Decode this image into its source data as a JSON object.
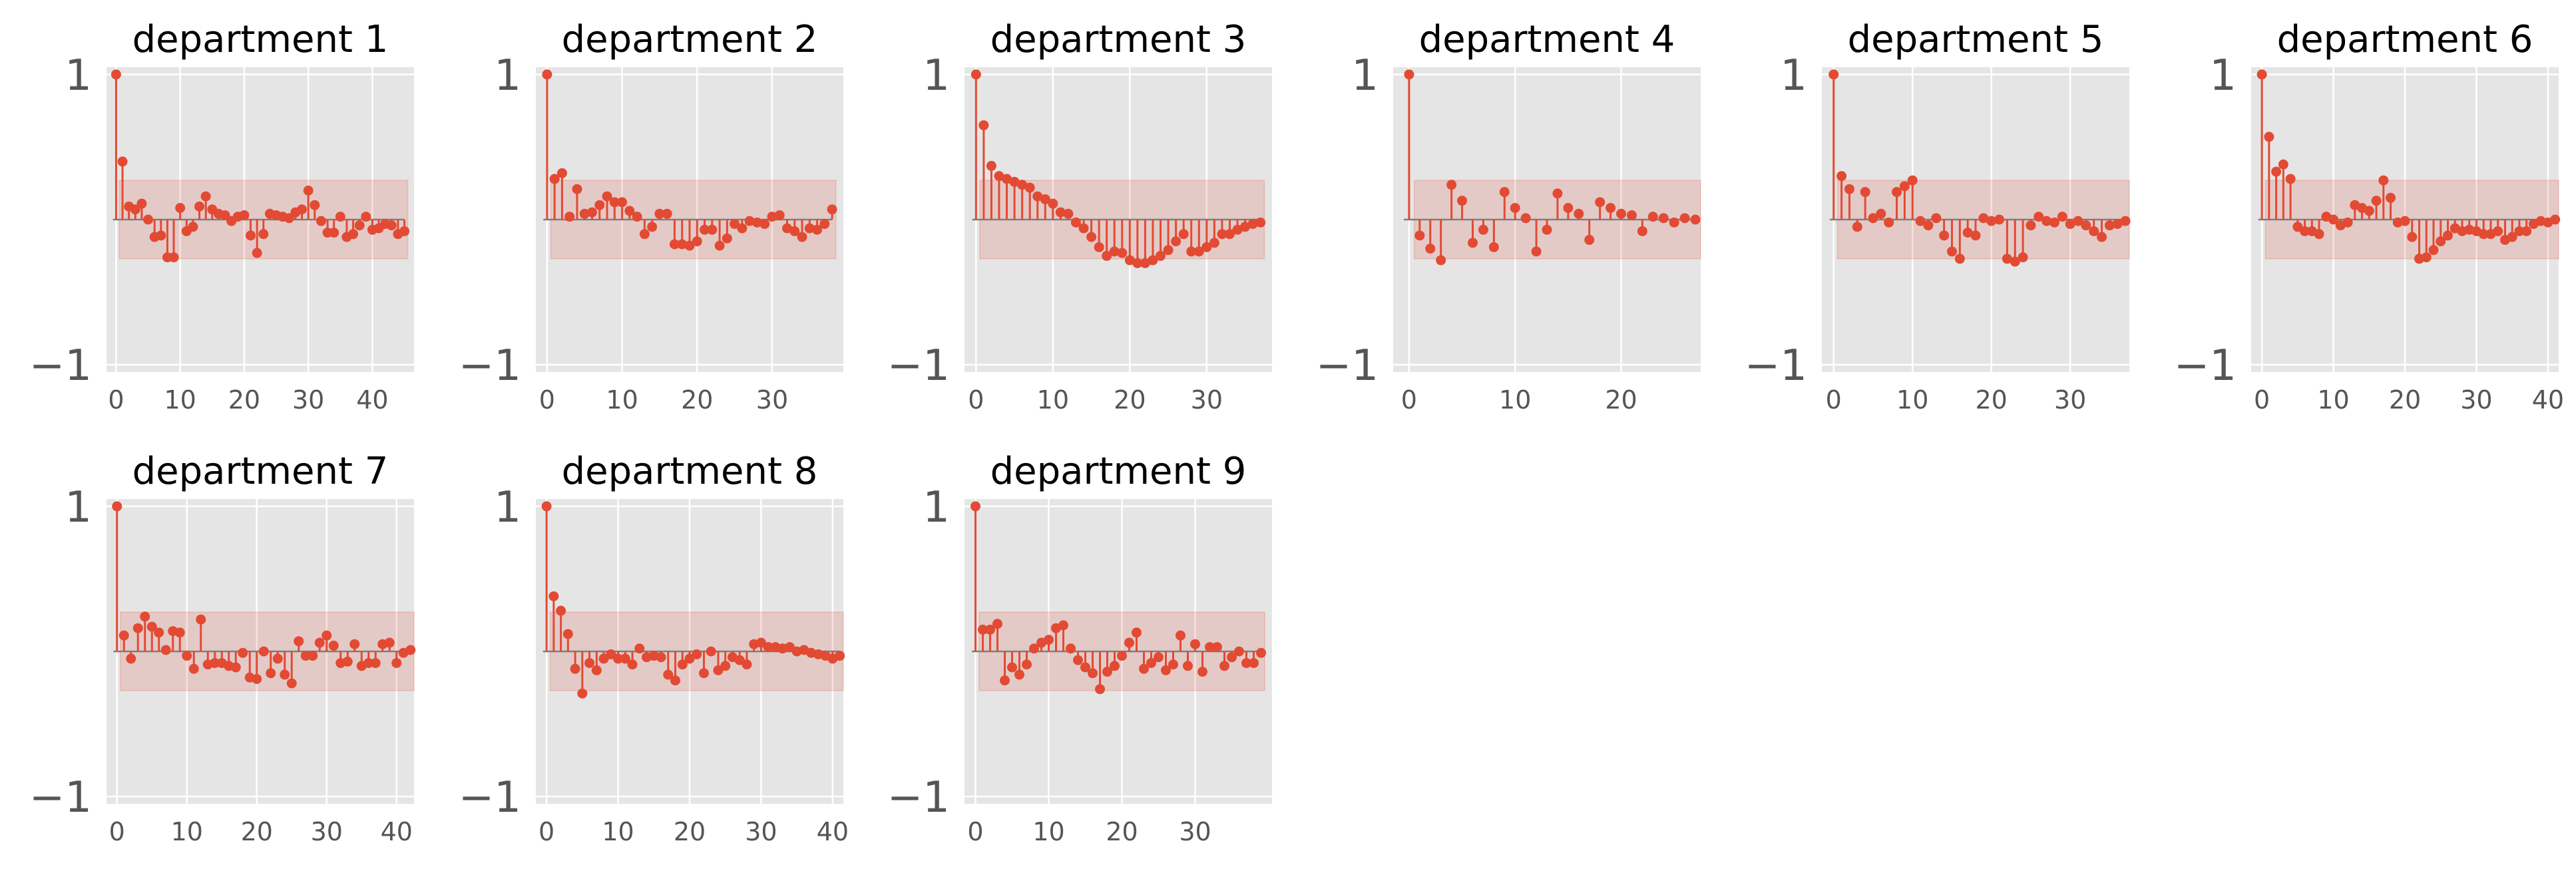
{
  "colors": {
    "stem": "#E24A33",
    "band": "#E24A33",
    "panel_bg": "#E5E5E5",
    "grid": "#FFFFFF",
    "tick_text": "#555555",
    "title_text": "#000000"
  },
  "chart_data": [
    {
      "type": "stem",
      "title": "department 1",
      "xlim": [
        -1.5,
        46.5
      ],
      "ylim": [
        -1.05,
        1.05
      ],
      "xticks": [
        0,
        10,
        20,
        30,
        40
      ],
      "yticks": [
        1,
        -1
      ],
      "xtick_labels": [
        "0",
        "10",
        "20",
        "30",
        "40"
      ],
      "ytick_labels": [
        "1",
        "−1"
      ],
      "confidence_band": 0.27,
      "lags": [
        0,
        1,
        2,
        3,
        4,
        5,
        6,
        7,
        8,
        9,
        10,
        11,
        12,
        13,
        14,
        15,
        16,
        17,
        18,
        19,
        20,
        21,
        22,
        23,
        24,
        25,
        26,
        27,
        28,
        29,
        30,
        31,
        32,
        33,
        34,
        35,
        36,
        37,
        38,
        39,
        40,
        41,
        42,
        43,
        44,
        45
      ],
      "values": [
        1.0,
        0.4,
        0.09,
        0.07,
        0.11,
        0.0,
        -0.12,
        -0.11,
        -0.26,
        -0.26,
        0.08,
        -0.08,
        -0.05,
        0.09,
        0.16,
        0.07,
        0.04,
        0.03,
        -0.01,
        0.02,
        0.03,
        -0.11,
        -0.23,
        -0.1,
        0.04,
        0.03,
        0.02,
        0.01,
        0.05,
        0.07,
        0.2,
        0.1,
        -0.01,
        -0.09,
        -0.09,
        0.02,
        -0.12,
        -0.1,
        -0.04,
        0.02,
        -0.07,
        -0.06,
        -0.03,
        -0.04,
        -0.1,
        -0.08
      ]
    },
    {
      "type": "stem",
      "title": "department 2",
      "xlim": [
        -1.5,
        39.5
      ],
      "ylim": [
        -1.05,
        1.05
      ],
      "xticks": [
        0,
        10,
        20,
        30
      ],
      "yticks": [
        1,
        -1
      ],
      "xtick_labels": [
        "0",
        "10",
        "20",
        "30"
      ],
      "ytick_labels": [
        "1",
        "−1"
      ],
      "confidence_band": 0.27,
      "lags": [
        0,
        1,
        2,
        3,
        4,
        5,
        6,
        7,
        8,
        9,
        10,
        11,
        12,
        13,
        14,
        15,
        16,
        17,
        18,
        19,
        20,
        21,
        22,
        23,
        24,
        25,
        26,
        27,
        28,
        29,
        30,
        31,
        32,
        33,
        34,
        35,
        36,
        37,
        38
      ],
      "values": [
        1.0,
        0.28,
        0.32,
        0.02,
        0.21,
        0.04,
        0.05,
        0.1,
        0.16,
        0.12,
        0.12,
        0.06,
        0.02,
        -0.1,
        -0.05,
        0.04,
        0.04,
        -0.17,
        -0.17,
        -0.18,
        -0.15,
        -0.07,
        -0.07,
        -0.18,
        -0.13,
        -0.03,
        -0.06,
        -0.01,
        -0.02,
        -0.03,
        0.02,
        0.03,
        -0.06,
        -0.08,
        -0.12,
        -0.06,
        -0.07,
        -0.03,
        0.07
      ]
    },
    {
      "type": "stem",
      "title": "department 3",
      "xlim": [
        -1.5,
        38.5
      ],
      "ylim": [
        -1.05,
        1.05
      ],
      "xticks": [
        0,
        10,
        20,
        30
      ],
      "yticks": [
        1,
        -1
      ],
      "xtick_labels": [
        "0",
        "10",
        "20",
        "30"
      ],
      "ytick_labels": [
        "1",
        "−1"
      ],
      "confidence_band": 0.27,
      "lags": [
        0,
        1,
        2,
        3,
        4,
        5,
        6,
        7,
        8,
        9,
        10,
        11,
        12,
        13,
        14,
        15,
        16,
        17,
        18,
        19,
        20,
        21,
        22,
        23,
        24,
        25,
        26,
        27,
        28,
        29,
        30,
        31,
        32,
        33,
        34,
        35,
        36,
        37
      ],
      "values": [
        1.0,
        0.65,
        0.37,
        0.3,
        0.28,
        0.26,
        0.24,
        0.22,
        0.16,
        0.14,
        0.11,
        0.05,
        0.04,
        -0.02,
        -0.06,
        -0.12,
        -0.19,
        -0.25,
        -0.22,
        -0.23,
        -0.28,
        -0.3,
        -0.3,
        -0.28,
        -0.25,
        -0.21,
        -0.15,
        -0.1,
        -0.22,
        -0.22,
        -0.19,
        -0.16,
        -0.1,
        -0.1,
        -0.07,
        -0.05,
        -0.03,
        -0.02
      ]
    },
    {
      "type": "stem",
      "title": "department 4",
      "xlim": [
        -1.5,
        27.5
      ],
      "ylim": [
        -1.05,
        1.05
      ],
      "xticks": [
        0,
        10,
        20
      ],
      "yticks": [
        1,
        -1
      ],
      "xtick_labels": [
        "0",
        "10",
        "20"
      ],
      "ytick_labels": [
        "1",
        "−1"
      ],
      "confidence_band": 0.27,
      "lags": [
        0,
        1,
        2,
        3,
        4,
        5,
        6,
        7,
        8,
        9,
        10,
        11,
        12,
        13,
        14,
        15,
        16,
        17,
        18,
        19,
        20,
        21,
        22,
        23,
        24,
        25,
        26,
        27
      ],
      "values": [
        1.0,
        -0.11,
        -0.2,
        -0.28,
        0.24,
        0.13,
        -0.16,
        -0.07,
        -0.19,
        0.19,
        0.08,
        0.01,
        -0.22,
        -0.07,
        0.18,
        0.08,
        0.04,
        -0.14,
        0.12,
        0.08,
        0.04,
        0.03,
        -0.08,
        0.02,
        0.01,
        -0.02,
        0.01,
        0.0
      ]
    },
    {
      "type": "stem",
      "title": "department 5",
      "xlim": [
        -1.5,
        37.5
      ],
      "ylim": [
        -1.05,
        1.05
      ],
      "xticks": [
        0,
        10,
        20,
        30
      ],
      "yticks": [
        1,
        -1
      ],
      "xtick_labels": [
        "0",
        "10",
        "20",
        "30"
      ],
      "ytick_labels": [
        "1",
        "−1"
      ],
      "confidence_band": 0.27,
      "lags": [
        0,
        1,
        2,
        3,
        4,
        5,
        6,
        7,
        8,
        9,
        10,
        11,
        12,
        13,
        14,
        15,
        16,
        17,
        18,
        19,
        20,
        21,
        22,
        23,
        24,
        25,
        26,
        27,
        28,
        29,
        30,
        31,
        32,
        33,
        34,
        35,
        36,
        37
      ],
      "values": [
        1.0,
        0.3,
        0.21,
        -0.05,
        0.19,
        0.01,
        0.04,
        -0.02,
        0.19,
        0.23,
        0.27,
        -0.01,
        -0.04,
        0.01,
        -0.11,
        -0.22,
        -0.27,
        -0.09,
        -0.11,
        0.01,
        -0.01,
        0.0,
        -0.27,
        -0.29,
        -0.26,
        -0.04,
        0.02,
        -0.01,
        -0.02,
        0.02,
        -0.03,
        -0.01,
        -0.04,
        -0.08,
        -0.12,
        -0.04,
        -0.03,
        -0.01
      ]
    },
    {
      "type": "stem",
      "title": "department 6",
      "xlim": [
        -1.5,
        41.5
      ],
      "ylim": [
        -1.05,
        1.05
      ],
      "xticks": [
        0,
        10,
        20,
        30,
        40
      ],
      "yticks": [
        1,
        -1
      ],
      "xtick_labels": [
        "0",
        "10",
        "20",
        "30",
        "40"
      ],
      "ytick_labels": [
        "1",
        "−1"
      ],
      "confidence_band": 0.27,
      "lags": [
        0,
        1,
        2,
        3,
        4,
        5,
        6,
        7,
        8,
        9,
        10,
        11,
        12,
        13,
        14,
        15,
        16,
        17,
        18,
        19,
        20,
        21,
        22,
        23,
        24,
        25,
        26,
        27,
        28,
        29,
        30,
        31,
        32,
        33,
        34,
        35,
        36,
        37,
        38,
        39,
        40,
        41
      ],
      "values": [
        1.0,
        0.57,
        0.33,
        0.38,
        0.28,
        -0.05,
        -0.08,
        -0.08,
        -0.1,
        0.02,
        0.0,
        -0.04,
        -0.02,
        0.1,
        0.08,
        0.06,
        0.13,
        0.27,
        0.15,
        -0.02,
        -0.01,
        -0.12,
        -0.27,
        -0.26,
        -0.21,
        -0.15,
        -0.11,
        -0.06,
        -0.08,
        -0.07,
        -0.08,
        -0.1,
        -0.1,
        -0.08,
        -0.14,
        -0.12,
        -0.08,
        -0.08,
        -0.03,
        -0.01,
        -0.02,
        0.0
      ]
    },
    {
      "type": "stem",
      "title": "department 7",
      "xlim": [
        -1.5,
        42.5
      ],
      "ylim": [
        -1.05,
        1.05
      ],
      "xticks": [
        0,
        10,
        20,
        30,
        40
      ],
      "yticks": [
        1,
        -1
      ],
      "xtick_labels": [
        "0",
        "10",
        "20",
        "30",
        "40"
      ],
      "ytick_labels": [
        "1",
        "−1"
      ],
      "confidence_band": 0.27,
      "lags": [
        0,
        1,
        2,
        3,
        4,
        5,
        6,
        7,
        8,
        9,
        10,
        11,
        12,
        13,
        14,
        15,
        16,
        17,
        18,
        19,
        20,
        21,
        22,
        23,
        24,
        25,
        26,
        27,
        28,
        29,
        30,
        31,
        32,
        33,
        34,
        35,
        36,
        37,
        38,
        39,
        40,
        41,
        42
      ],
      "values": [
        1.0,
        0.11,
        -0.05,
        0.16,
        0.24,
        0.17,
        0.13,
        0.01,
        0.14,
        0.13,
        -0.03,
        -0.12,
        0.22,
        -0.09,
        -0.08,
        -0.08,
        -0.1,
        -0.11,
        -0.01,
        -0.18,
        -0.19,
        0.0,
        -0.15,
        -0.05,
        -0.16,
        -0.22,
        0.07,
        -0.03,
        -0.03,
        0.06,
        0.11,
        0.04,
        -0.08,
        -0.07,
        0.05,
        -0.1,
        -0.08,
        -0.08,
        0.05,
        0.06,
        -0.08,
        -0.01,
        0.01
      ]
    },
    {
      "type": "stem",
      "title": "department 8",
      "xlim": [
        -1.5,
        41.5
      ],
      "ylim": [
        -1.05,
        1.05
      ],
      "xticks": [
        0,
        10,
        20,
        30,
        40
      ],
      "yticks": [
        1,
        -1
      ],
      "xtick_labels": [
        "0",
        "10",
        "20",
        "30",
        "40"
      ],
      "ytick_labels": [
        "1",
        "−1"
      ],
      "confidence_band": 0.27,
      "lags": [
        0,
        1,
        2,
        3,
        4,
        5,
        6,
        7,
        8,
        9,
        10,
        11,
        12,
        13,
        14,
        15,
        16,
        17,
        18,
        19,
        20,
        21,
        22,
        23,
        24,
        25,
        26,
        27,
        28,
        29,
        30,
        31,
        32,
        33,
        34,
        35,
        36,
        37,
        38,
        39,
        40,
        41
      ],
      "values": [
        1.0,
        0.38,
        0.28,
        0.12,
        -0.12,
        -0.29,
        -0.08,
        -0.13,
        -0.05,
        -0.02,
        -0.05,
        -0.05,
        -0.09,
        0.02,
        -0.04,
        -0.03,
        -0.04,
        -0.16,
        -0.2,
        -0.09,
        -0.05,
        -0.02,
        -0.15,
        0.0,
        -0.13,
        -0.1,
        -0.04,
        -0.06,
        -0.09,
        0.05,
        0.06,
        0.03,
        0.03,
        0.02,
        0.03,
        0.0,
        0.01,
        -0.01,
        -0.02,
        -0.03,
        -0.05,
        -0.03
      ]
    },
    {
      "type": "stem",
      "title": "department 9",
      "xlim": [
        -1.5,
        40.5
      ],
      "ylim": [
        -1.05,
        1.05
      ],
      "xticks": [
        0,
        10,
        20,
        30
      ],
      "yticks": [
        1,
        -1
      ],
      "xtick_labels": [
        "0",
        "10",
        "20",
        "30"
      ],
      "ytick_labels": [
        "1",
        "−1"
      ],
      "confidence_band": 0.27,
      "lags": [
        0,
        1,
        2,
        3,
        4,
        5,
        6,
        7,
        8,
        9,
        10,
        11,
        12,
        13,
        14,
        15,
        16,
        17,
        18,
        19,
        20,
        21,
        22,
        23,
        24,
        25,
        26,
        27,
        28,
        29,
        30,
        31,
        32,
        33,
        34,
        35,
        36,
        37,
        38,
        39
      ],
      "values": [
        1.0,
        0.15,
        0.15,
        0.19,
        -0.2,
        -0.11,
        -0.16,
        -0.09,
        0.02,
        0.06,
        0.08,
        0.16,
        0.18,
        0.02,
        -0.06,
        -0.11,
        -0.15,
        -0.26,
        -0.14,
        -0.1,
        -0.03,
        0.06,
        0.13,
        -0.12,
        -0.08,
        -0.04,
        -0.13,
        -0.09,
        0.11,
        -0.1,
        0.05,
        -0.14,
        0.03,
        0.03,
        -0.1,
        -0.04,
        0.0,
        -0.08,
        -0.08,
        -0.01
      ]
    }
  ]
}
